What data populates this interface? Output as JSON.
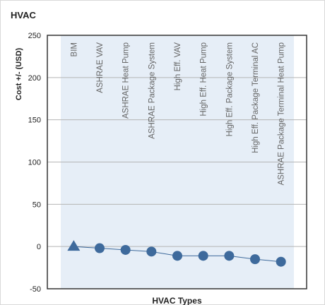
{
  "panel": {
    "title": "HVAC"
  },
  "colors": {
    "plot_band": "#e6eef7",
    "grid": "#b4b4b4",
    "axis": "#333333",
    "series": "#3e6a9c",
    "category_text": "#666666"
  },
  "chart_data": {
    "type": "line",
    "title": "",
    "xlabel": "HVAC Types",
    "ylabel": "Cost +/- (USD)",
    "ylim": [
      -50,
      250
    ],
    "yticks": [
      "-50",
      "0",
      "50",
      "100",
      "150",
      "200",
      "250"
    ],
    "ytick_values": [
      -50,
      0,
      50,
      100,
      150,
      200,
      250
    ],
    "grid": true,
    "categories": [
      "BIM",
      "ASHRAE VAV",
      "ASHRAE Heat Pump",
      "ASHRAE Package System",
      "High Eff. VAV",
      "High Eff. Heat Pump",
      "High Eff. Package System",
      "High Eff. Package Terminal AC",
      "ASHRAE Package Terminal Heat Pump"
    ],
    "series": [
      {
        "values": [
          0,
          -2,
          -4,
          -6,
          -11,
          -11,
          -11,
          -15,
          -18
        ],
        "markers": [
          "triangle",
          "circle",
          "circle",
          "circle",
          "circle",
          "circle",
          "circle",
          "circle",
          "circle"
        ]
      }
    ]
  }
}
